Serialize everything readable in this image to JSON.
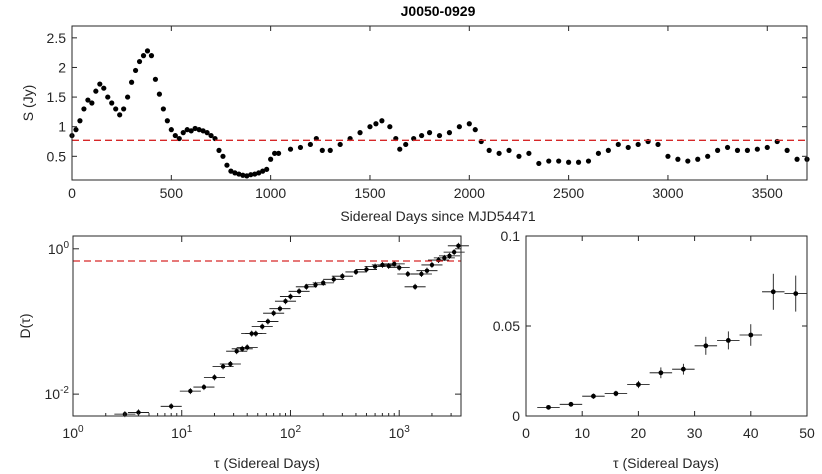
{
  "chart_data": [
    {
      "type": "scatter",
      "title": "J0050-0929",
      "xlabel": "Sidereal Days since MJD54471",
      "ylabel": "S (Jy)",
      "xlim": [
        0,
        3700
      ],
      "ylim": [
        0.1,
        2.7
      ],
      "xticks": [
        "0",
        "500",
        "1000",
        "1500",
        "2000",
        "2500",
        "3000",
        "3500"
      ],
      "yticks": [
        "0.5",
        "1",
        "1.5",
        "2",
        "2.5"
      ],
      "xtick_values": [
        0,
        500,
        1000,
        1500,
        2000,
        2500,
        3000,
        3500
      ],
      "ytick_values": [
        0.5,
        1,
        1.5,
        2,
        2.5
      ],
      "reference_line": {
        "y": 0.77,
        "style": "red dashed"
      },
      "x": [
        0,
        20,
        40,
        60,
        80,
        100,
        120,
        140,
        160,
        180,
        200,
        220,
        240,
        260,
        280,
        300,
        320,
        340,
        360,
        380,
        400,
        420,
        440,
        460,
        480,
        500,
        520,
        540,
        560,
        580,
        600,
        620,
        640,
        660,
        680,
        700,
        720,
        740,
        760,
        780,
        800,
        820,
        840,
        860,
        880,
        900,
        920,
        940,
        960,
        980,
        1000,
        1020,
        1040,
        1100,
        1150,
        1200,
        1230,
        1260,
        1300,
        1350,
        1400,
        1450,
        1500,
        1530,
        1560,
        1600,
        1630,
        1650,
        1680,
        1720,
        1760,
        1800,
        1850,
        1900,
        1950,
        2000,
        2030,
        2060,
        2100,
        2150,
        2200,
        2250,
        2300,
        2350,
        2400,
        2450,
        2500,
        2550,
        2600,
        2650,
        2700,
        2750,
        2800,
        2850,
        2900,
        2950,
        3000,
        3050,
        3100,
        3150,
        3200,
        3250,
        3300,
        3350,
        3400,
        3450,
        3500,
        3550,
        3600,
        3650,
        3700
      ],
      "y": [
        0.85,
        0.95,
        1.1,
        1.3,
        1.45,
        1.4,
        1.6,
        1.72,
        1.65,
        1.5,
        1.4,
        1.3,
        1.2,
        1.3,
        1.5,
        1.75,
        1.95,
        2.1,
        2.2,
        2.28,
        2.2,
        1.8,
        1.55,
        1.3,
        1.1,
        0.95,
        0.85,
        0.8,
        0.9,
        0.95,
        0.93,
        0.97,
        0.95,
        0.93,
        0.9,
        0.85,
        0.8,
        0.6,
        0.5,
        0.35,
        0.25,
        0.22,
        0.2,
        0.18,
        0.17,
        0.19,
        0.2,
        0.22,
        0.25,
        0.28,
        0.45,
        0.55,
        0.55,
        0.62,
        0.65,
        0.7,
        0.8,
        0.6,
        0.6,
        0.7,
        0.8,
        0.9,
        1.0,
        1.05,
        1.1,
        1.0,
        0.8,
        0.62,
        0.7,
        0.8,
        0.85,
        0.9,
        0.85,
        0.9,
        1.0,
        1.05,
        0.95,
        0.75,
        0.6,
        0.55,
        0.6,
        0.5,
        0.55,
        0.38,
        0.42,
        0.42,
        0.4,
        0.4,
        0.42,
        0.55,
        0.6,
        0.7,
        0.65,
        0.7,
        0.75,
        0.7,
        0.5,
        0.45,
        0.42,
        0.45,
        0.5,
        0.6,
        0.65,
        0.6,
        0.6,
        0.62,
        0.65,
        0.75,
        0.6,
        0.45,
        0.45
      ]
    },
    {
      "type": "scatter",
      "xlabel": "τ (Sidereal Days)",
      "ylabel": "D(τ)",
      "xscale": "log",
      "yscale": "log",
      "xlim": [
        1,
        3700
      ],
      "ylim": [
        0.005,
        1.5
      ],
      "xticks": [
        "10^0",
        "10^1",
        "10^2",
        "10^3"
      ],
      "yticks": [
        "10^-2",
        "10^0"
      ],
      "xtick_values": [
        1,
        10,
        100,
        1000
      ],
      "ytick_values": [
        0.01,
        1
      ],
      "reference_line": {
        "y": 0.68,
        "style": "red dashed"
      },
      "tau": [
        3,
        4,
        8,
        12,
        16,
        20,
        24,
        28,
        32,
        36,
        40,
        44,
        48,
        55,
        62,
        70,
        80,
        90,
        100,
        120,
        140,
        170,
        200,
        250,
        300,
        400,
        500,
        600,
        700,
        800,
        900,
        1000,
        1200,
        1400,
        1600,
        1800,
        2000,
        2300,
        2600,
        2900,
        3200,
        3500
      ],
      "D": [
        0.0053,
        0.0056,
        0.0068,
        0.011,
        0.0125,
        0.017,
        0.024,
        0.026,
        0.039,
        0.042,
        0.044,
        0.068,
        0.068,
        0.085,
        0.1,
        0.13,
        0.15,
        0.19,
        0.22,
        0.26,
        0.3,
        0.32,
        0.34,
        0.38,
        0.42,
        0.48,
        0.52,
        0.57,
        0.6,
        0.58,
        0.62,
        0.55,
        0.45,
        0.3,
        0.45,
        0.5,
        0.6,
        0.7,
        0.75,
        0.8,
        0.9,
        1.1
      ]
    },
    {
      "type": "scatter",
      "xlabel": "τ (Sidereal Days)",
      "xlim": [
        0,
        50
      ],
      "ylim": [
        0,
        0.1
      ],
      "xticks": [
        "0",
        "10",
        "20",
        "30",
        "40",
        "50"
      ],
      "yticks": [
        "0",
        "0.05",
        "0.1"
      ],
      "xtick_values": [
        0,
        10,
        20,
        30,
        40,
        50
      ],
      "ytick_values": [
        0,
        0.05,
        0.1
      ],
      "tau": [
        4,
        8,
        12,
        16,
        20,
        24,
        28,
        32,
        36,
        40,
        44,
        48
      ],
      "D": [
        0.0048,
        0.0065,
        0.011,
        0.0125,
        0.0175,
        0.024,
        0.026,
        0.039,
        0.042,
        0.045,
        0.069,
        0.068
      ],
      "D_err": [
        0.001,
        0.001,
        0.0015,
        0.0015,
        0.002,
        0.003,
        0.003,
        0.005,
        0.005,
        0.006,
        0.01,
        0.01
      ]
    }
  ]
}
